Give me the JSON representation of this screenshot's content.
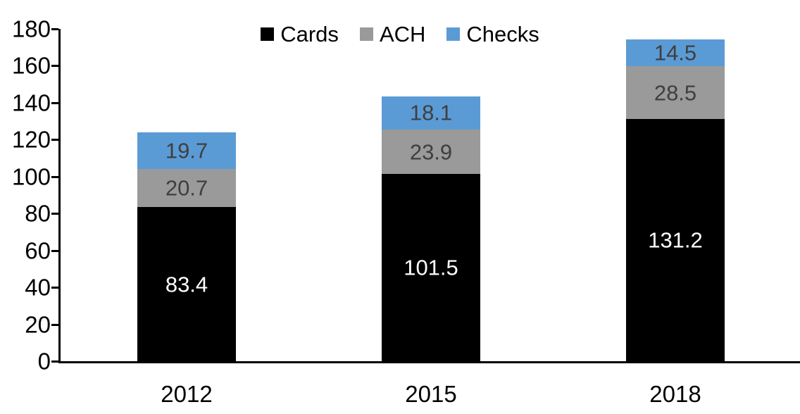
{
  "chart_data": {
    "type": "bar",
    "stacked": true,
    "title": "",
    "xlabel": "",
    "ylabel": "",
    "categories": [
      "2012",
      "2015",
      "2018"
    ],
    "series": [
      {
        "name": "Cards",
        "color": "#000000",
        "label_color": "#ffffff",
        "values": [
          83.4,
          101.5,
          131.2
        ]
      },
      {
        "name": "ACH",
        "color": "#9a9a9a",
        "label_color": "#3f3f3f",
        "values": [
          20.7,
          23.9,
          28.5
        ]
      },
      {
        "name": "Checks",
        "color": "#5b9bd5",
        "label_color": "#3f3f3f",
        "values": [
          19.7,
          18.1,
          14.5
        ]
      }
    ],
    "ylim": [
      0,
      180
    ],
    "yticks": [
      0,
      20,
      40,
      60,
      80,
      100,
      120,
      140,
      160,
      180
    ],
    "grid": false,
    "legend_position": "top-center",
    "data_labels": true,
    "tick_label_color": "#000000",
    "axis_color": "#000000"
  }
}
